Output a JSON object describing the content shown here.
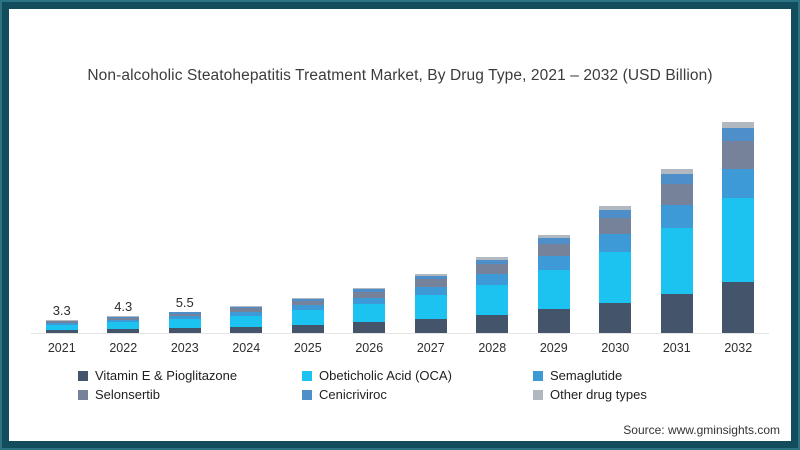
{
  "frame": {
    "outer_border_color": "#2e7383",
    "inner_border_color": "#134c5d"
  },
  "title": "Non-alcoholic Steatohepatitis Treatment Market, By Drug Type, 2021 – 2032 (USD Billion)",
  "source": "Source: www.gminsights.com",
  "chart_data": {
    "type": "bar",
    "stacked": true,
    "title": "Non-alcoholic Steatohepatitis Treatment Market, By Drug Type, 2021 – 2032 (USD Billion)",
    "xlabel": "",
    "ylabel": "",
    "unit": "USD Billion",
    "categories": [
      "2021",
      "2022",
      "2023",
      "2024",
      "2025",
      "2026",
      "2027",
      "2028",
      "2029",
      "2030",
      "2031",
      "2032"
    ],
    "totals": [
      3.3,
      4.3,
      5.5,
      7.1,
      9.2,
      11.8,
      15.3,
      19.7,
      25.5,
      32.9,
      42.5,
      54.8
    ],
    "total_labels": [
      "3.3",
      "4.3",
      "5.5",
      "",
      "",
      "",
      "",
      "",
      "",
      "",
      "",
      ""
    ],
    "series": [
      {
        "name": "Vitamin E & Pioglitazone",
        "color": "#44546a",
        "values": [
          0.79,
          1.03,
          1.32,
          1.7,
          2.21,
          2.83,
          3.67,
          4.73,
          6.12,
          7.9,
          10.2,
          13.15
        ]
      },
      {
        "name": "Obeticholic Acid (OCA)",
        "color": "#1cc3f0",
        "values": [
          1.32,
          1.72,
          2.2,
          2.84,
          3.68,
          4.72,
          6.12,
          7.88,
          10.2,
          13.16,
          17.0,
          21.92
        ]
      },
      {
        "name": "Semaglutide",
        "color": "#3e9ad6",
        "values": [
          0.46,
          0.6,
          0.77,
          0.99,
          1.29,
          1.65,
          2.14,
          2.76,
          3.57,
          4.61,
          5.95,
          7.67
        ]
      },
      {
        "name": "Selonsertib",
        "color": "#758299",
        "values": [
          0.43,
          0.56,
          0.72,
          0.92,
          1.2,
          1.53,
          1.99,
          2.56,
          3.32,
          4.28,
          5.53,
          7.12
        ]
      },
      {
        "name": "Cenicriviroc",
        "color": "#4e8fc9",
        "values": [
          0.2,
          0.26,
          0.33,
          0.43,
          0.55,
          0.71,
          0.92,
          1.18,
          1.53,
          1.97,
          2.55,
          3.29
        ]
      },
      {
        "name": "Other drug types",
        "color": "#b2b8bf",
        "values": [
          0.1,
          0.13,
          0.17,
          0.21,
          0.28,
          0.35,
          0.46,
          0.59,
          0.77,
          0.99,
          1.28,
          1.64
        ]
      }
    ],
    "ylim": [
      0,
      57
    ],
    "grid": false,
    "axis_line_color": "#e4e4e4",
    "legend_position": "bottom"
  }
}
